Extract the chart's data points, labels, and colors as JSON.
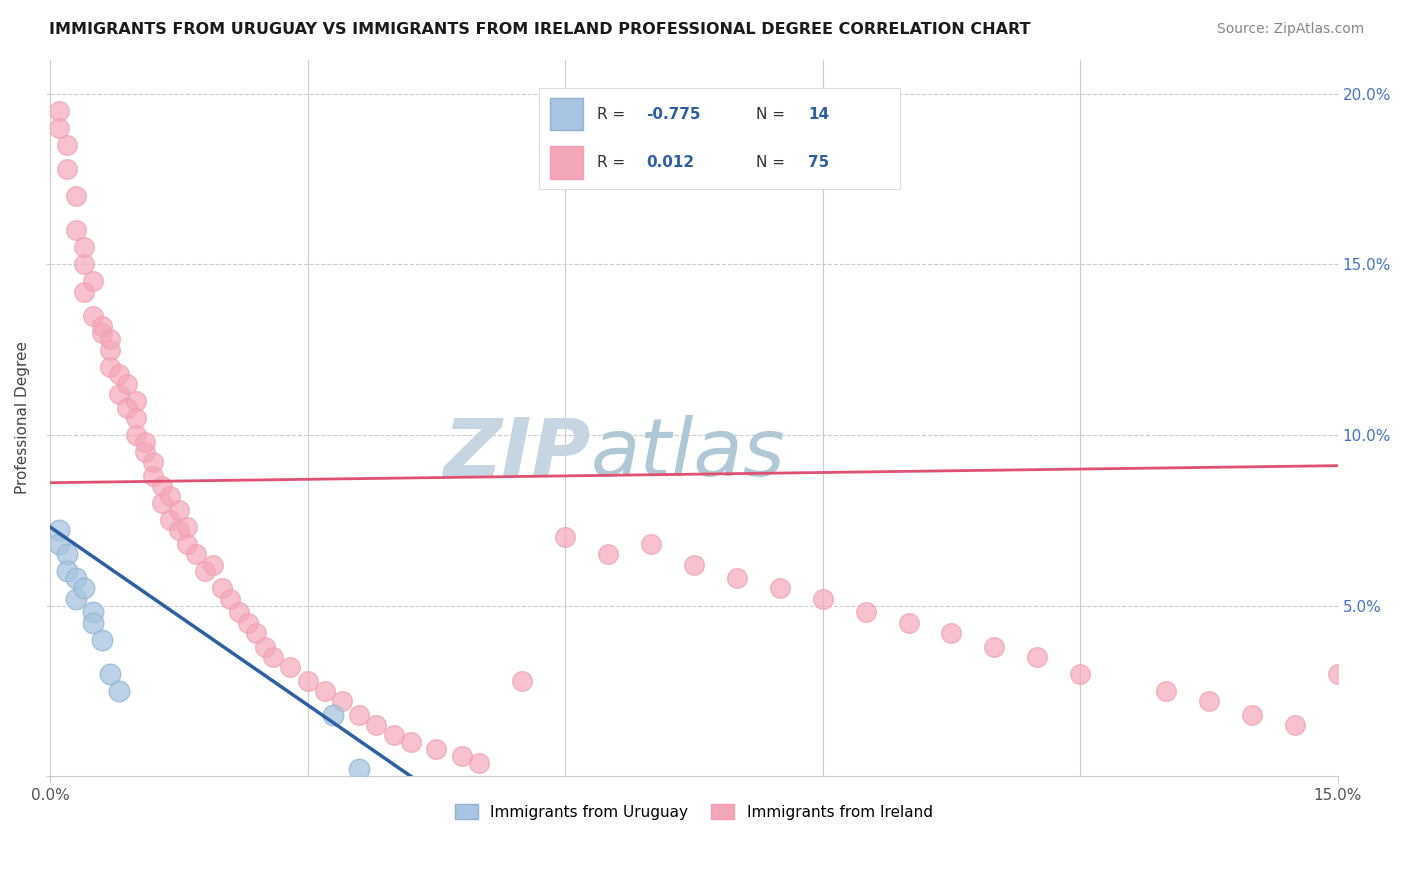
{
  "title": "IMMIGRANTS FROM URUGUAY VS IMMIGRANTS FROM IRELAND PROFESSIONAL DEGREE CORRELATION CHART",
  "source": "Source: ZipAtlas.com",
  "ylabel": "Professional Degree",
  "legend_label_uruguay": "Immigrants from Uruguay",
  "legend_label_ireland": "Immigrants from Ireland",
  "R_uruguay": -0.775,
  "N_uruguay": 14,
  "R_ireland": 0.012,
  "N_ireland": 75,
  "color_uruguay": "#a8c4e0",
  "color_ireland": "#f4a7b9",
  "line_color_uruguay": "#2e5fa3",
  "line_color_ireland": "#e05070",
  "watermark_color_zip": "#c8d4e0",
  "watermark_color_atlas": "#b0c8d8",
  "xlim": [
    0.0,
    0.15
  ],
  "ylim": [
    0.0,
    0.21
  ],
  "xtick_vals": [
    0.0,
    0.15
  ],
  "xtick_labels": [
    "0.0%",
    "15.0%"
  ],
  "xtick_minor_vals": [
    0.03,
    0.06,
    0.09,
    0.12
  ],
  "yticks": [
    0.0,
    0.05,
    0.1,
    0.15,
    0.2
  ],
  "ytick_labels": [
    "",
    "5.0%",
    "10.0%",
    "15.0%",
    "20.0%"
  ],
  "background_color": "#ffffff",
  "grid_color": "#cccccc",
  "uruguay_x": [
    0.001,
    0.001,
    0.002,
    0.002,
    0.003,
    0.003,
    0.004,
    0.005,
    0.005,
    0.006,
    0.007,
    0.008,
    0.033,
    0.036
  ],
  "uruguay_y": [
    0.072,
    0.068,
    0.065,
    0.06,
    0.058,
    0.052,
    0.055,
    0.048,
    0.045,
    0.04,
    0.03,
    0.025,
    0.018,
    0.002
  ],
  "ireland_x": [
    0.001,
    0.001,
    0.002,
    0.002,
    0.003,
    0.003,
    0.004,
    0.004,
    0.004,
    0.005,
    0.005,
    0.006,
    0.006,
    0.007,
    0.007,
    0.007,
    0.008,
    0.008,
    0.009,
    0.009,
    0.01,
    0.01,
    0.01,
    0.011,
    0.011,
    0.012,
    0.012,
    0.013,
    0.013,
    0.014,
    0.014,
    0.015,
    0.015,
    0.016,
    0.016,
    0.017,
    0.018,
    0.019,
    0.02,
    0.021,
    0.022,
    0.023,
    0.024,
    0.025,
    0.026,
    0.028,
    0.03,
    0.032,
    0.034,
    0.036,
    0.038,
    0.04,
    0.042,
    0.045,
    0.048,
    0.05,
    0.055,
    0.06,
    0.065,
    0.07,
    0.075,
    0.08,
    0.085,
    0.09,
    0.095,
    0.1,
    0.105,
    0.11,
    0.115,
    0.12,
    0.13,
    0.135,
    0.14,
    0.145,
    0.15
  ],
  "ireland_y": [
    0.195,
    0.19,
    0.185,
    0.178,
    0.17,
    0.16,
    0.15,
    0.142,
    0.155,
    0.135,
    0.145,
    0.13,
    0.132,
    0.125,
    0.128,
    0.12,
    0.112,
    0.118,
    0.108,
    0.115,
    0.105,
    0.11,
    0.1,
    0.095,
    0.098,
    0.088,
    0.092,
    0.085,
    0.08,
    0.082,
    0.075,
    0.078,
    0.072,
    0.068,
    0.073,
    0.065,
    0.06,
    0.062,
    0.055,
    0.052,
    0.048,
    0.045,
    0.042,
    0.038,
    0.035,
    0.032,
    0.028,
    0.025,
    0.022,
    0.018,
    0.015,
    0.012,
    0.01,
    0.008,
    0.006,
    0.004,
    0.028,
    0.07,
    0.065,
    0.068,
    0.062,
    0.058,
    0.055,
    0.052,
    0.048,
    0.045,
    0.042,
    0.038,
    0.035,
    0.03,
    0.025,
    0.022,
    0.018,
    0.015,
    0.03
  ],
  "ireland_line_x0": 0.0,
  "ireland_line_y0": 0.086,
  "ireland_line_x1": 0.15,
  "ireland_line_y1": 0.091,
  "uruguay_line_x0": 0.0,
  "uruguay_line_y0": 0.073,
  "uruguay_line_x1": 0.042,
  "uruguay_line_y1": 0.0
}
